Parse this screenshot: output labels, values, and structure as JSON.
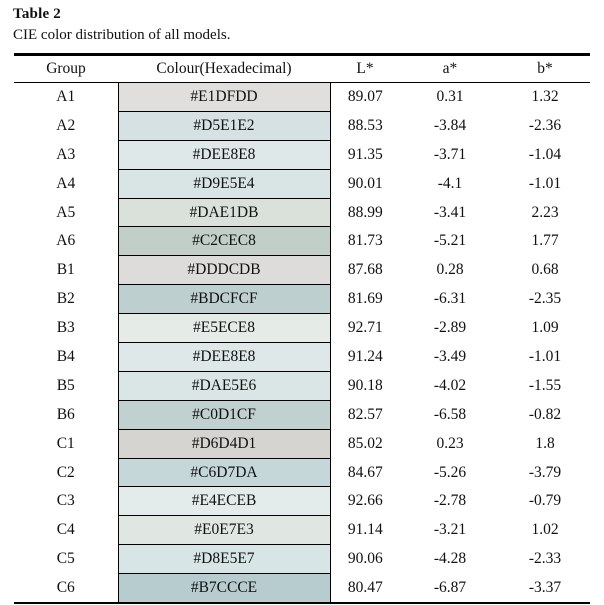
{
  "title": "Table 2",
  "caption": "CIE color distribution of all models.",
  "table": {
    "headers": {
      "group": "Group",
      "colour": "Colour(Hexadecimal)",
      "l": "L*",
      "a": "a*",
      "b": "b*"
    },
    "rows": [
      {
        "group": "A1",
        "hex": "#E1DFDD",
        "L": "89.07",
        "a": "0.31",
        "b": "1.32"
      },
      {
        "group": "A2",
        "hex": "#D5E1E2",
        "L": "88.53",
        "a": "-3.84",
        "b": "-2.36"
      },
      {
        "group": "A3",
        "hex": "#DEE8E8",
        "L": "91.35",
        "a": "-3.71",
        "b": "-1.04"
      },
      {
        "group": "A4",
        "hex": "#D9E5E4",
        "L": "90.01",
        "a": "-4.1",
        "b": "-1.01"
      },
      {
        "group": "A5",
        "hex": "#DAE1DB",
        "L": "88.99",
        "a": "-3.41",
        "b": "2.23"
      },
      {
        "group": "A6",
        "hex": "#C2CEC8",
        "L": "81.73",
        "a": "-5.21",
        "b": "1.77"
      },
      {
        "group": "B1",
        "hex": "#DDDCDB",
        "L": "87.68",
        "a": "0.28",
        "b": "0.68"
      },
      {
        "group": "B2",
        "hex": "#BDCFCF",
        "L": "81.69",
        "a": "-6.31",
        "b": "-2.35"
      },
      {
        "group": "B3",
        "hex": "#E5ECE8",
        "L": "92.71",
        "a": "-2.89",
        "b": "1.09"
      },
      {
        "group": "B4",
        "hex": "#DEE8E8",
        "L": "91.24",
        "a": "-3.49",
        "b": "-1.01"
      },
      {
        "group": "B5",
        "hex": "#DAE5E6",
        "L": "90.18",
        "a": "-4.02",
        "b": "-1.55"
      },
      {
        "group": "B6",
        "hex": "#C0D1CF",
        "L": "82.57",
        "a": "-6.58",
        "b": "-0.82"
      },
      {
        "group": "C1",
        "hex": "#D6D4D1",
        "L": "85.02",
        "a": "0.23",
        "b": "1.8"
      },
      {
        "group": "C2",
        "hex": "#C6D7DA",
        "L": "84.67",
        "a": "-5.26",
        "b": "-3.79"
      },
      {
        "group": "C3",
        "hex": "#E4ECEB",
        "L": "92.66",
        "a": "-2.78",
        "b": "-0.79"
      },
      {
        "group": "C4",
        "hex": "#E0E7E3",
        "L": "91.14",
        "a": "-3.21",
        "b": "1.02"
      },
      {
        "group": "C5",
        "hex": "#D8E5E7",
        "L": "90.06",
        "a": "-4.28",
        "b": "-2.33"
      },
      {
        "group": "C6",
        "hex": "#B7CCCE",
        "L": "80.47",
        "a": "-6.87",
        "b": "-3.37"
      }
    ]
  },
  "rule_color": "#000000"
}
